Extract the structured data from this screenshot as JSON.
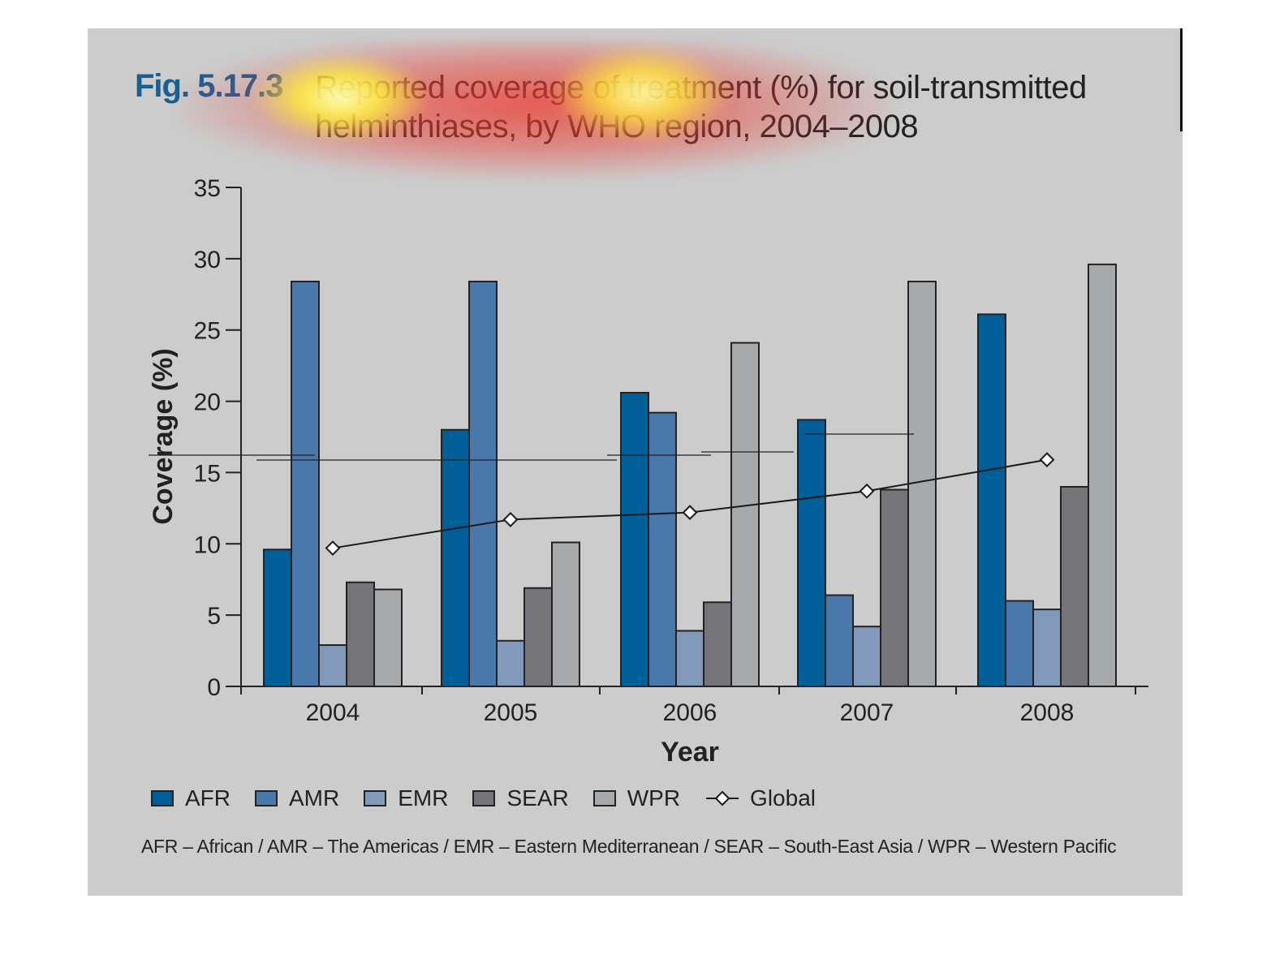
{
  "figure": {
    "number": "Fig. 5.17.3",
    "title": "Reported coverage of treatment (%) for soil-transmitted helminthiases, by WHO region, 2004–2008",
    "footnote": "AFR – African / AMR – The Americas / EMR – Eastern Mediterranean / SEAR – South-East Asia / WPR – Western Pacific"
  },
  "colors": {
    "panel_background": "#cccccc",
    "figure_number": "#1a5f91",
    "AFR": "#005f99",
    "AMR": "#4a78ab",
    "EMR": "#8299bb",
    "SEAR": "#757579",
    "WPR": "#a8a9ab",
    "Global": "#1a1a1a",
    "heatmap_overlay": "#ec3c32"
  },
  "legend": {
    "items": [
      {
        "label": "AFR",
        "color": "#005f99"
      },
      {
        "label": "AMR",
        "color": "#4a78ab"
      },
      {
        "label": "EMR",
        "color": "#8299bb"
      },
      {
        "label": "SEAR",
        "color": "#757579"
      },
      {
        "label": "WPR",
        "color": "#a8a9ab"
      }
    ],
    "global_label": "Global",
    "placement": "bottom"
  },
  "chart_data": {
    "type": "bar",
    "title": "Reported coverage of treatment (%) for soil-transmitted helminthiases, by WHO region, 2004–2008",
    "xlabel": "Year",
    "ylabel": "Coverage (%)",
    "categories": [
      "2004",
      "2005",
      "2006",
      "2007",
      "2008"
    ],
    "ylim": [
      0,
      35
    ],
    "yticks": [
      "0",
      "5",
      "10",
      "15",
      "20",
      "25",
      "30",
      "35"
    ],
    "grid": false,
    "series": [
      {
        "name": "AFR",
        "values": [
          9.6,
          18.0,
          20.6,
          18.7,
          26.1
        ]
      },
      {
        "name": "AMR",
        "values": [
          28.4,
          28.4,
          19.2,
          6.4,
          6.0
        ]
      },
      {
        "name": "EMR",
        "values": [
          2.9,
          3.2,
          3.9,
          4.2,
          5.4
        ]
      },
      {
        "name": "SEAR",
        "values": [
          7.3,
          6.9,
          5.9,
          13.8,
          14.0
        ]
      },
      {
        "name": "WPR",
        "values": [
          6.8,
          10.1,
          24.1,
          28.4,
          29.6
        ]
      }
    ],
    "line_series": {
      "name": "Global",
      "type": "line",
      "marker": "diamond",
      "values": [
        9.7,
        11.7,
        12.2,
        13.7,
        15.9
      ]
    }
  }
}
